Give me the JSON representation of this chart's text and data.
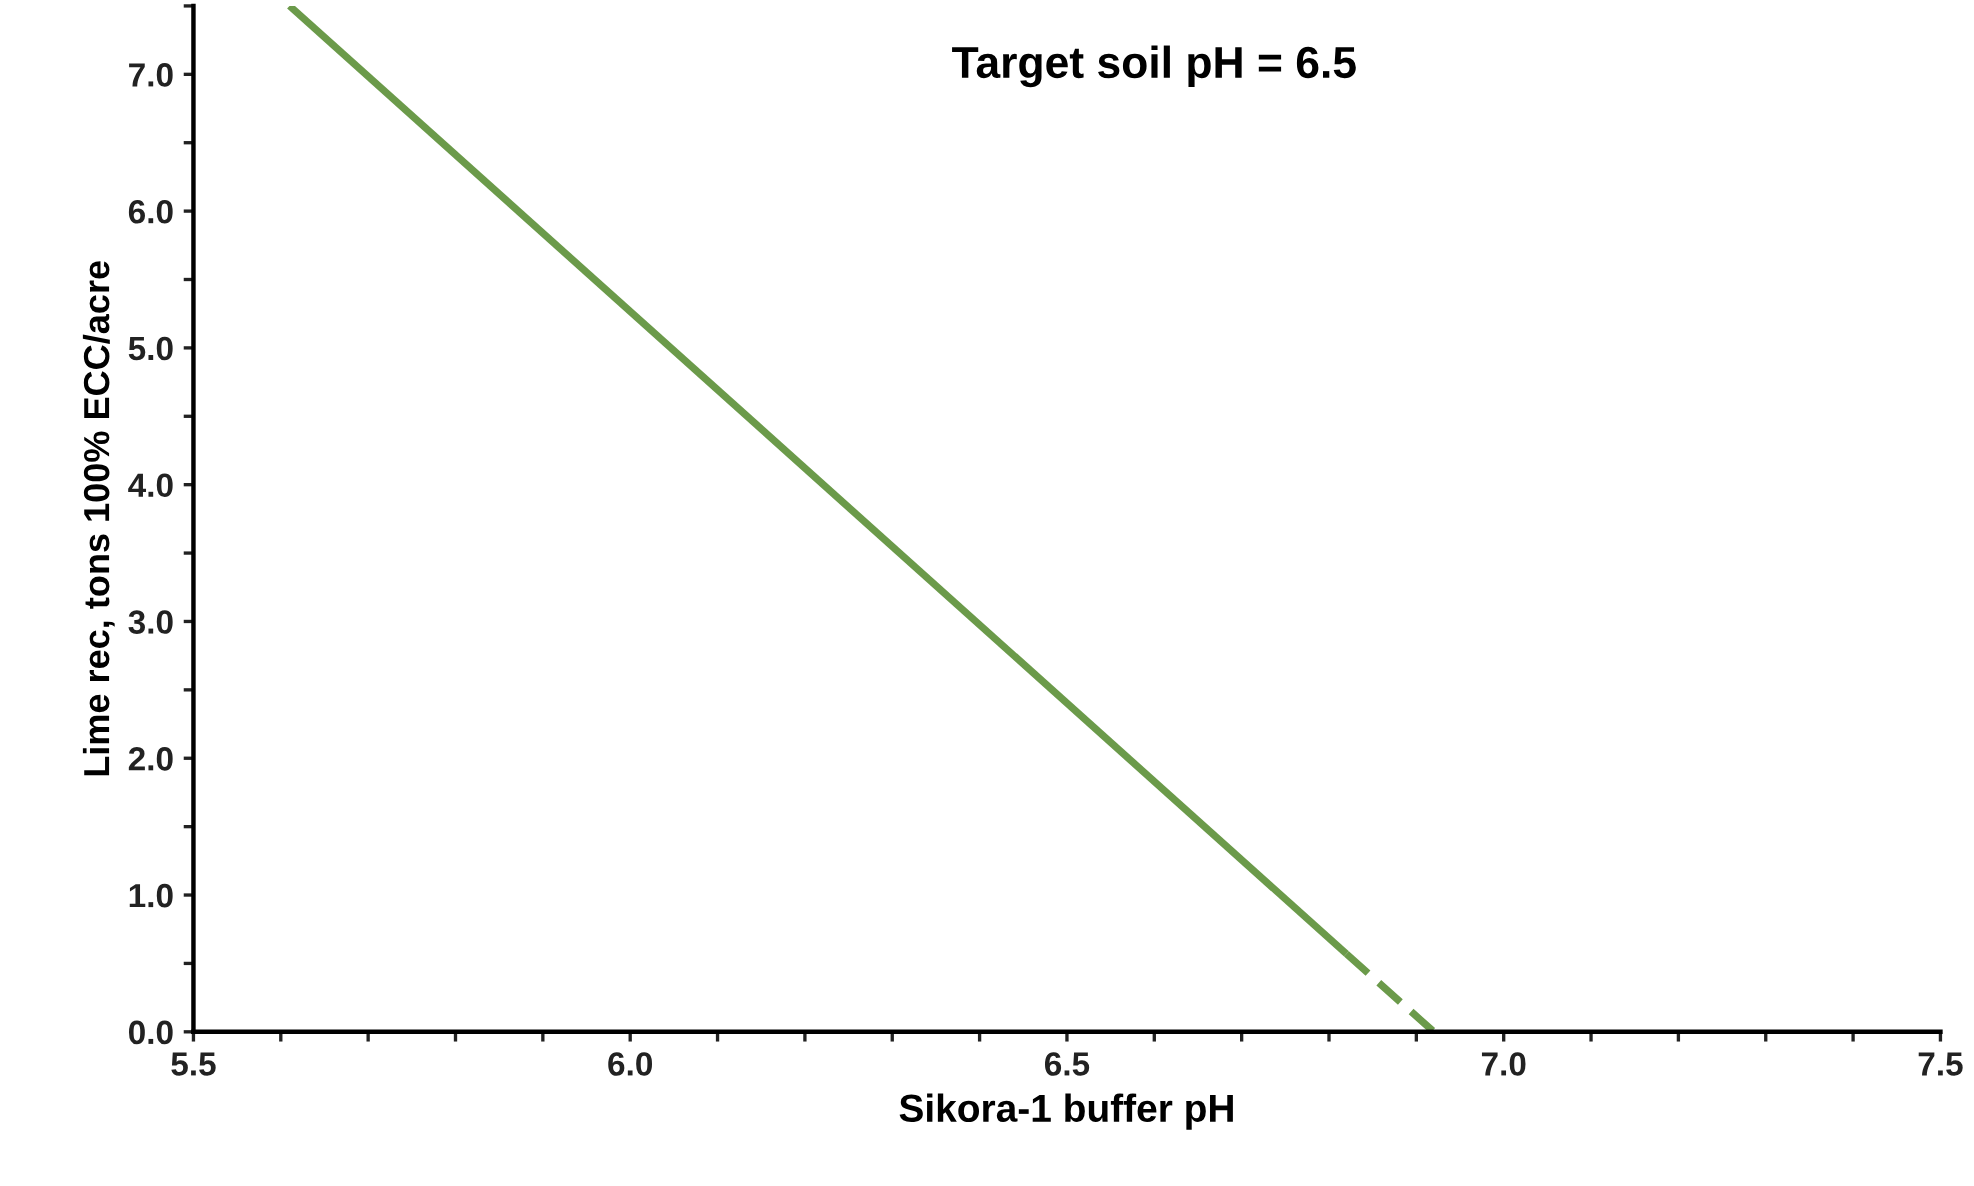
{
  "chart_data": {
    "type": "line",
    "xlabel": "Sikora-1 buffer pH",
    "ylabel": "Lime rec, tons 100% ECC/acre",
    "annotations": [
      "Target soil pH = 6.5"
    ],
    "series": [
      {
        "color": "#6b9a4a",
        "line_style": "solid",
        "x": [
          5.61,
          6.82
        ],
        "values": [
          7.5,
          0.57
        ]
      },
      {
        "color": "#6b9a4a",
        "line_style": "dashed",
        "x": [
          6.82,
          6.92
        ],
        "values": [
          0.57,
          0.0
        ]
      }
    ],
    "xlim": [
      5.5,
      7.5
    ],
    "ylim": [
      0,
      7.5
    ],
    "xticks": [
      {
        "value": 5.5,
        "label": "5.5"
      },
      {
        "value": 5.6,
        "label": null
      },
      {
        "value": 5.7,
        "label": null
      },
      {
        "value": 5.8,
        "label": null
      },
      {
        "value": 5.9,
        "label": null
      },
      {
        "value": 6.0,
        "label": "6.0"
      },
      {
        "value": 6.1,
        "label": null
      },
      {
        "value": 6.2,
        "label": null
      },
      {
        "value": 6.3,
        "label": null
      },
      {
        "value": 6.4,
        "label": null
      },
      {
        "value": 6.5,
        "label": "6.5"
      },
      {
        "value": 6.6,
        "label": null
      },
      {
        "value": 6.7,
        "label": null
      },
      {
        "value": 6.8,
        "label": null
      },
      {
        "value": 6.9,
        "label": null
      },
      {
        "value": 7.0,
        "label": "7.0"
      },
      {
        "value": 7.1,
        "label": null
      },
      {
        "value": 7.2,
        "label": null
      },
      {
        "value": 7.3,
        "label": null
      },
      {
        "value": 7.4,
        "label": null
      },
      {
        "value": 7.5,
        "label": "7.5"
      }
    ],
    "yticks": [
      {
        "value": 0,
        "label": "0.0"
      },
      {
        "value": 0.5,
        "label": null
      },
      {
        "value": 1,
        "label": "1.0"
      },
      {
        "value": 1.5,
        "label": null
      },
      {
        "value": 2,
        "label": "2.0"
      },
      {
        "value": 2.5,
        "label": null
      },
      {
        "value": 3,
        "label": "3.0"
      },
      {
        "value": 3.5,
        "label": null
      },
      {
        "value": 4,
        "label": "4.0"
      },
      {
        "value": 4.5,
        "label": null
      },
      {
        "value": 5,
        "label": "5.0"
      },
      {
        "value": 5.5,
        "label": null
      },
      {
        "value": 6,
        "label": "6.0"
      },
      {
        "value": 6.5,
        "label": null
      },
      {
        "value": 7,
        "label": "7.0"
      },
      {
        "value": 7.5,
        "label": null
      }
    ],
    "grid": false,
    "legend": false,
    "marker": "none"
  }
}
